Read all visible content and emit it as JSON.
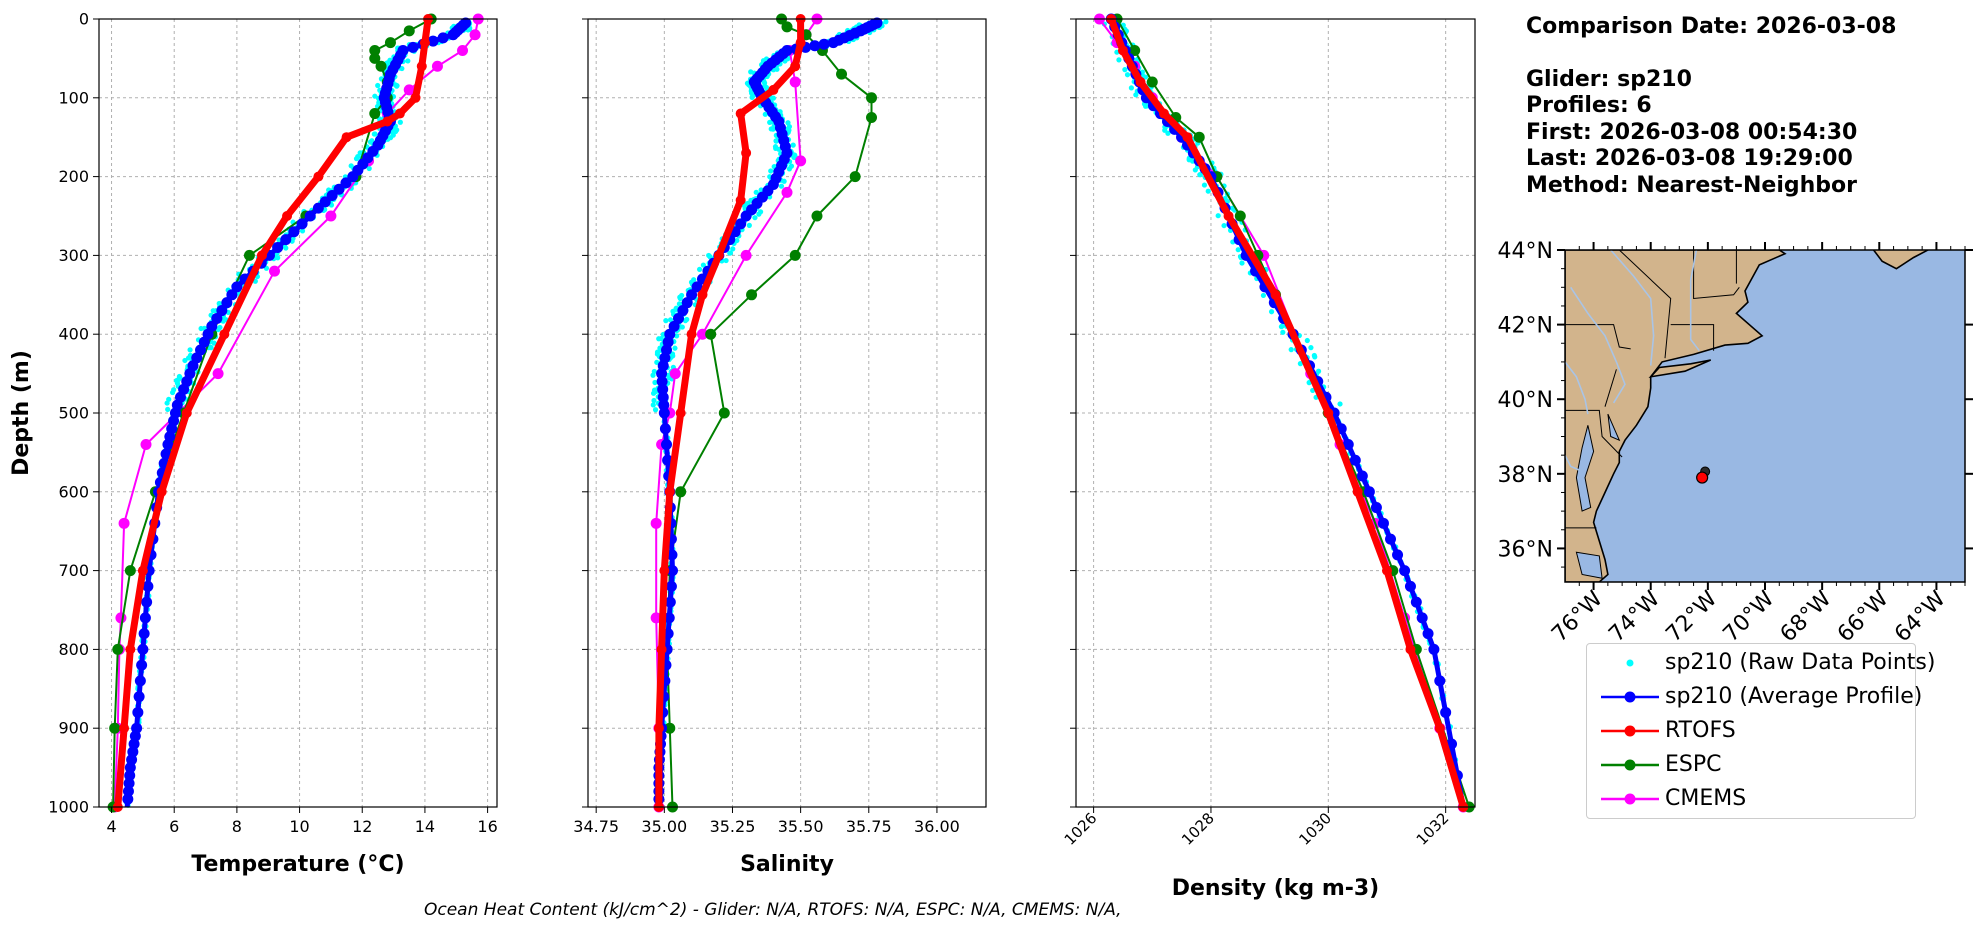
{
  "info": {
    "comparison_date": "Comparison Date: 2026-03-08",
    "glider": "Glider: sp210",
    "profiles": "Profiles: 6",
    "first": "First: 2026-03-08 00:54:30",
    "last": "Last: 2026-03-08 19:29:00",
    "method": "Method: Nearest-Neighbor"
  },
  "footer": "Ocean Heat Content (kJ/cm^2) - Glider: N/A,  RTOFS: N/A,  ESPC: N/A,  CMEMS: N/A,",
  "legend": [
    {
      "label": "sp210 (Raw Data Points)",
      "color": "#00ffff",
      "style": "dots"
    },
    {
      "label": "sp210 (Average Profile)",
      "color": "#0000ff",
      "style": "line-marker"
    },
    {
      "label": "RTOFS",
      "color": "#ff0000",
      "style": "line-marker"
    },
    {
      "label": "ESPC",
      "color": "#008000",
      "style": "line-marker"
    },
    {
      "label": "CMEMS",
      "color": "#ff00ff",
      "style": "line-marker"
    }
  ],
  "map": {
    "lat_labels": [
      "44°N",
      "42°N",
      "40°N",
      "38°N",
      "36°N"
    ],
    "lon_labels": [
      "76°W",
      "74°W",
      "72°W",
      "70°W",
      "68°W",
      "66°W",
      "64°W"
    ],
    "lat_range": [
      35.1,
      44.0
    ],
    "lon_range": [
      -77.0,
      -63.0
    ],
    "land_color": "#d2b48c",
    "ocean_color": "#99b8e3",
    "glider_position": {
      "lat": 37.9,
      "lon": -72.2
    }
  },
  "chart_data": [
    {
      "type": "line",
      "xlabel": "Temperature (°C)",
      "ylabel": "Depth (m)",
      "xlim": [
        3.6,
        16.3
      ],
      "ylim": [
        1000,
        0
      ],
      "xticks": [
        "4",
        "6",
        "8",
        "10",
        "12",
        "14",
        "16"
      ],
      "yticks": [
        "0",
        "100",
        "200",
        "300",
        "400",
        "500",
        "600",
        "700",
        "800",
        "900",
        "1000"
      ],
      "grid": true,
      "series": [
        {
          "name": "sp210 (Average Profile)",
          "color": "#0000ff",
          "x": [
            15.3,
            14.9,
            13.3,
            12.9,
            12.7,
            12.9,
            12.5,
            11.7,
            10.6,
            9.3,
            8.0,
            7.2,
            6.6,
            6.1,
            5.8,
            5.5,
            5.2,
            5.0,
            4.8,
            4.6,
            4.5
          ],
          "y": [
            5,
            20,
            40,
            70,
            100,
            130,
            160,
            200,
            240,
            290,
            340,
            390,
            440,
            490,
            540,
            600,
            700,
            800,
            900,
            950,
            1000
          ]
        },
        {
          "name": "RTOFS",
          "color": "#ff0000",
          "x": [
            14.1,
            14.0,
            13.9,
            13.7,
            13.2,
            12.8,
            11.5,
            10.6,
            9.6,
            8.8,
            7.6,
            6.4,
            5.6,
            5.0,
            4.6,
            4.4,
            4.2
          ],
          "y": [
            0,
            30,
            60,
            100,
            120,
            130,
            150,
            200,
            250,
            300,
            400,
            500,
            600,
            700,
            800,
            900,
            1000
          ]
        },
        {
          "name": "ESPC",
          "color": "#008000",
          "x": [
            14.2,
            13.5,
            12.9,
            12.4,
            12.4,
            12.6,
            12.8,
            12.8,
            12.4,
            11.8,
            10.2,
            8.4,
            7.2,
            6.3,
            5.4,
            4.6,
            4.2,
            4.1,
            4.05
          ],
          "y": [
            0,
            15,
            30,
            40,
            50,
            60,
            80,
            100,
            120,
            200,
            250,
            300,
            400,
            500,
            600,
            700,
            800,
            900,
            1000
          ]
        },
        {
          "name": "CMEMS",
          "color": "#ff00ff",
          "x": [
            15.7,
            15.6,
            15.2,
            14.4,
            13.5,
            12.8,
            12.2,
            11.0,
            9.2,
            7.4,
            5.1,
            4.4,
            4.3,
            4.25,
            4.2,
            4.1
          ],
          "y": [
            0,
            20,
            40,
            60,
            90,
            120,
            180,
            250,
            320,
            450,
            540,
            640,
            760,
            800,
            900,
            1000
          ]
        }
      ]
    },
    {
      "type": "line",
      "xlabel": "Salinity",
      "ylabel": "",
      "xlim": [
        34.72,
        36.18
      ],
      "ylim": [
        1000,
        0
      ],
      "xticks": [
        "34.75",
        "35.00",
        "35.25",
        "35.50",
        "35.75",
        "36.00"
      ],
      "yticks": [
        "0",
        "100",
        "200",
        "300",
        "400",
        "500",
        "600",
        "700",
        "800",
        "900",
        "1000"
      ],
      "grid": true,
      "series": [
        {
          "name": "sp210 (Average Profile)",
          "color": "#0000ff",
          "x": [
            35.78,
            35.72,
            35.62,
            35.45,
            35.38,
            35.33,
            35.36,
            35.42,
            35.45,
            35.4,
            35.3,
            35.2,
            35.1,
            35.02,
            34.99,
            35.0,
            35.02,
            35.03,
            35.01,
            34.99,
            34.98,
            34.98
          ],
          "y": [
            5,
            15,
            30,
            40,
            60,
            80,
            100,
            130,
            170,
            210,
            250,
            300,
            350,
            400,
            450,
            500,
            600,
            700,
            800,
            900,
            950,
            1000
          ]
        },
        {
          "name": "RTOFS",
          "color": "#ff0000",
          "x": [
            35.5,
            35.5,
            35.48,
            35.4,
            35.28,
            35.3,
            35.28,
            35.2,
            35.14,
            35.1,
            35.06,
            35.02,
            35.0,
            34.99,
            34.98,
            34.98
          ],
          "y": [
            0,
            30,
            60,
            90,
            120,
            170,
            230,
            300,
            350,
            400,
            500,
            600,
            700,
            800,
            900,
            1000
          ]
        },
        {
          "name": "ESPC",
          "color": "#008000",
          "x": [
            35.43,
            35.45,
            35.52,
            35.58,
            35.65,
            35.76,
            35.76,
            35.7,
            35.56,
            35.48,
            35.32,
            35.17,
            35.22,
            35.06,
            35.02,
            35.01,
            35.02,
            35.03
          ],
          "y": [
            0,
            10,
            20,
            40,
            70,
            100,
            125,
            200,
            250,
            300,
            350,
            400,
            500,
            600,
            700,
            800,
            900,
            1000
          ]
        },
        {
          "name": "CMEMS",
          "color": "#ff00ff",
          "x": [
            35.56,
            35.52,
            35.46,
            35.48,
            35.5,
            35.45,
            35.3,
            35.14,
            35.04,
            35.02,
            34.99,
            34.97,
            34.97,
            34.98,
            34.98
          ],
          "y": [
            0,
            20,
            40,
            80,
            180,
            220,
            300,
            400,
            450,
            500,
            540,
            640,
            760,
            900,
            1000
          ]
        }
      ]
    },
    {
      "type": "line",
      "xlabel": "Density (kg m-3)",
      "ylabel": "",
      "xlim": [
        1025.7,
        1032.5
      ],
      "ylim": [
        1000,
        0
      ],
      "xticks": [
        "1026",
        "1028",
        "1030",
        "1032"
      ],
      "yticks": [
        "0",
        "100",
        "200",
        "300",
        "400",
        "500",
        "600",
        "700",
        "800",
        "900",
        "1000"
      ],
      "grid": true,
      "series": [
        {
          "name": "sp210 (Average Profile)",
          "color": "#0000ff",
          "x": [
            1026.3,
            1026.6,
            1026.9,
            1027.5,
            1028.0,
            1028.6,
            1029.4,
            1030.1,
            1030.7,
            1031.3,
            1031.8,
            1032.3
          ],
          "y": [
            0,
            50,
            100,
            150,
            200,
            300,
            400,
            500,
            600,
            700,
            800,
            1000
          ]
        },
        {
          "name": "RTOFS",
          "color": "#ff0000",
          "x": [
            1026.3,
            1026.5,
            1026.8,
            1027.2,
            1027.6,
            1028.3,
            1029.1,
            1030.0,
            1030.5,
            1031.0,
            1031.4,
            1031.9,
            1032.3
          ],
          "y": [
            0,
            40,
            80,
            120,
            150,
            250,
            350,
            500,
            600,
            700,
            800,
            900,
            1000
          ]
        },
        {
          "name": "ESPC",
          "color": "#008000",
          "x": [
            1026.4,
            1026.7,
            1027.0,
            1027.4,
            1027.8,
            1028.1,
            1028.5,
            1028.8,
            1029.1,
            1029.4,
            1030.0,
            1030.6,
            1031.1,
            1031.5,
            1032.4
          ],
          "y": [
            0,
            40,
            80,
            125,
            150,
            200,
            250,
            300,
            350,
            400,
            500,
            600,
            700,
            800,
            1000
          ]
        },
        {
          "name": "CMEMS",
          "color": "#ff00ff",
          "x": [
            1026.1,
            1026.4,
            1026.7,
            1027.0,
            1027.5,
            1028.1,
            1028.9,
            1029.7,
            1030.2,
            1030.8,
            1031.3,
            1031.9,
            1032.3
          ],
          "y": [
            0,
            30,
            60,
            100,
            150,
            200,
            300,
            450,
            540,
            640,
            760,
            900,
            1000
          ]
        }
      ]
    }
  ]
}
